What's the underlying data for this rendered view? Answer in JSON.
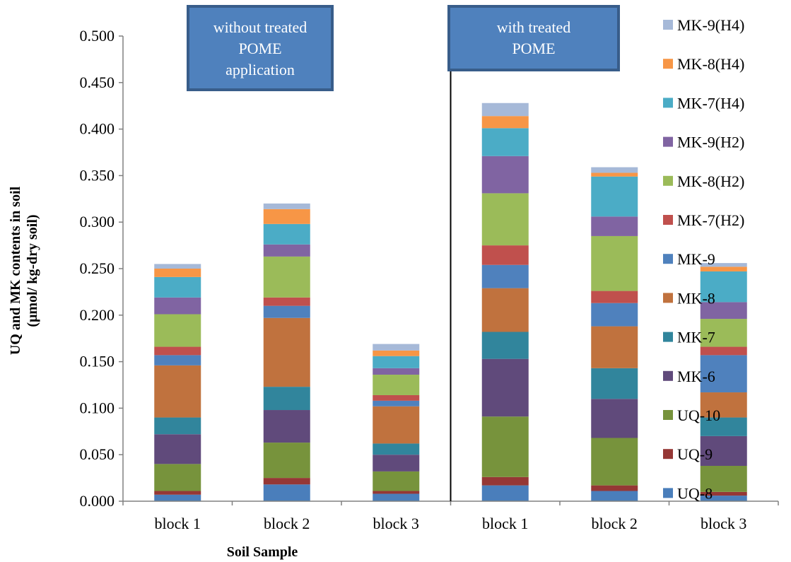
{
  "chart_data": {
    "type": "bar",
    "stacked": true,
    "title": "",
    "xlabel": "Soil Sample",
    "ylabel_line1": "UQ and MK contents in soil",
    "ylabel_line2": "(μmol/ kg-dry soil)",
    "ylim": [
      0,
      0.5
    ],
    "yticks": [
      "0.000",
      "0.050",
      "0.100",
      "0.150",
      "0.200",
      "0.250",
      "0.300",
      "0.350",
      "0.400",
      "0.450",
      "0.500"
    ],
    "grid": false,
    "legend_position": "right",
    "categories": [
      "block 1",
      "block 2",
      "block 3",
      "block 1",
      "block 2",
      "block 3"
    ],
    "groups": [
      {
        "label_lines": [
          "without treated",
          "POME",
          "application"
        ]
      },
      {
        "label_lines": [
          "with treated",
          "POME"
        ]
      }
    ],
    "series": [
      {
        "name": "UQ-8",
        "color": "#4A7EBB",
        "values": [
          0.007,
          0.018,
          0.008,
          0.017,
          0.011,
          0.006
        ]
      },
      {
        "name": "UQ-9",
        "color": "#953735",
        "values": [
          0.004,
          0.007,
          0.003,
          0.009,
          0.006,
          0.004
        ]
      },
      {
        "name": "UQ-10",
        "color": "#77933C",
        "values": [
          0.029,
          0.038,
          0.021,
          0.065,
          0.051,
          0.028
        ]
      },
      {
        "name": "MK-6",
        "color": "#604A7B",
        "values": [
          0.032,
          0.035,
          0.018,
          0.062,
          0.042,
          0.032
        ]
      },
      {
        "name": "MK-7",
        "color": "#31859C",
        "values": [
          0.018,
          0.025,
          0.012,
          0.029,
          0.033,
          0.02
        ]
      },
      {
        "name": "MK-8",
        "color": "#C0723E",
        "values": [
          0.056,
          0.074,
          0.04,
          0.047,
          0.045,
          0.027
        ]
      },
      {
        "name": "MK-9",
        "color": "#4F81BD",
        "values": [
          0.011,
          0.013,
          0.006,
          0.025,
          0.025,
          0.04
        ]
      },
      {
        "name": "MK-7(H2)",
        "color": "#C0504D",
        "values": [
          0.009,
          0.009,
          0.006,
          0.021,
          0.013,
          0.009
        ]
      },
      {
        "name": "MK-8(H2)",
        "color": "#9BBB59",
        "values": [
          0.035,
          0.044,
          0.022,
          0.056,
          0.059,
          0.03
        ]
      },
      {
        "name": "MK-9(H2)",
        "color": "#8064A2",
        "values": [
          0.018,
          0.013,
          0.007,
          0.04,
          0.021,
          0.018
        ]
      },
      {
        "name": "MK-7(H4)",
        "color": "#4BACC6",
        "values": [
          0.022,
          0.022,
          0.013,
          0.03,
          0.043,
          0.033
        ]
      },
      {
        "name": "MK-8(H4)",
        "color": "#F79646",
        "values": [
          0.009,
          0.016,
          0.006,
          0.013,
          0.004,
          0.005
        ]
      },
      {
        "name": "MK-9(H4)",
        "color": "#A6B9D8",
        "values": [
          0.005,
          0.006,
          0.007,
          0.014,
          0.006,
          0.004
        ]
      }
    ]
  }
}
